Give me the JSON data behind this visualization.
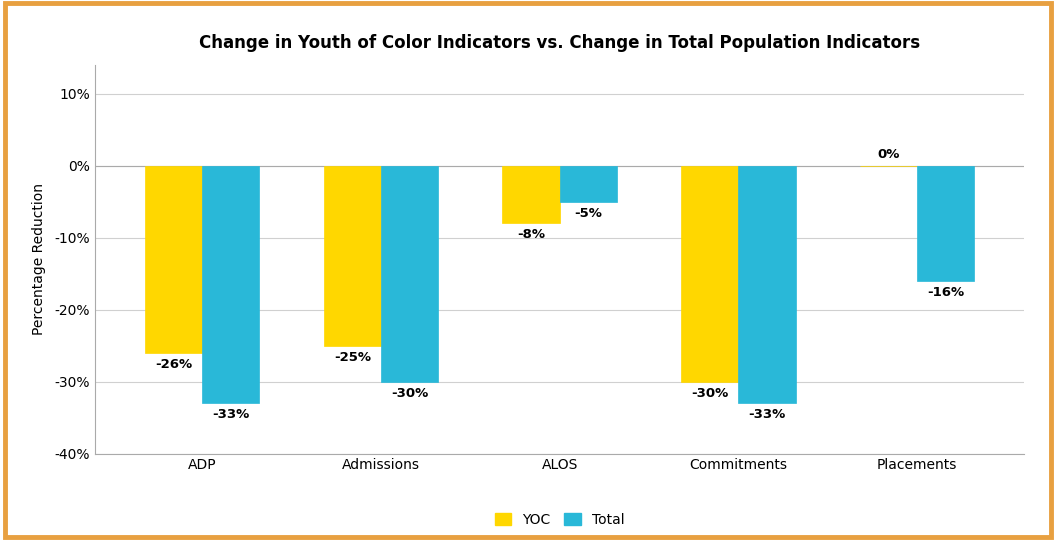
{
  "title": "Change in Youth of Color Indicators vs. Change in Total Population Indicators",
  "categories": [
    "ADP",
    "Admissions",
    "ALOS",
    "Commitments",
    "Placements"
  ],
  "yoc_values": [
    -26,
    -25,
    -8,
    -30,
    0
  ],
  "total_values": [
    -33,
    -30,
    -5,
    -33,
    -16
  ],
  "yoc_color": "#FFD700",
  "total_color": "#29B8D8",
  "ylabel": "Percentage Reduction",
  "ylim": [
    -40,
    14
  ],
  "yticks": [
    -40,
    -30,
    -20,
    -10,
    0,
    10
  ],
  "ytick_labels": [
    "-40%",
    "-30%",
    "-20%",
    "-10%",
    "0%",
    "10%"
  ],
  "bar_width": 0.32,
  "legend_labels": [
    "YOC",
    "Total"
  ],
  "background_color": "#FFFFFF",
  "outer_bg_color": "#FFFFFF",
  "border_color": "#E8A040",
  "grid_color": "#D0D0D0",
  "title_fontsize": 12,
  "label_fontsize": 10,
  "tick_fontsize": 10,
  "annot_fontsize": 9.5
}
